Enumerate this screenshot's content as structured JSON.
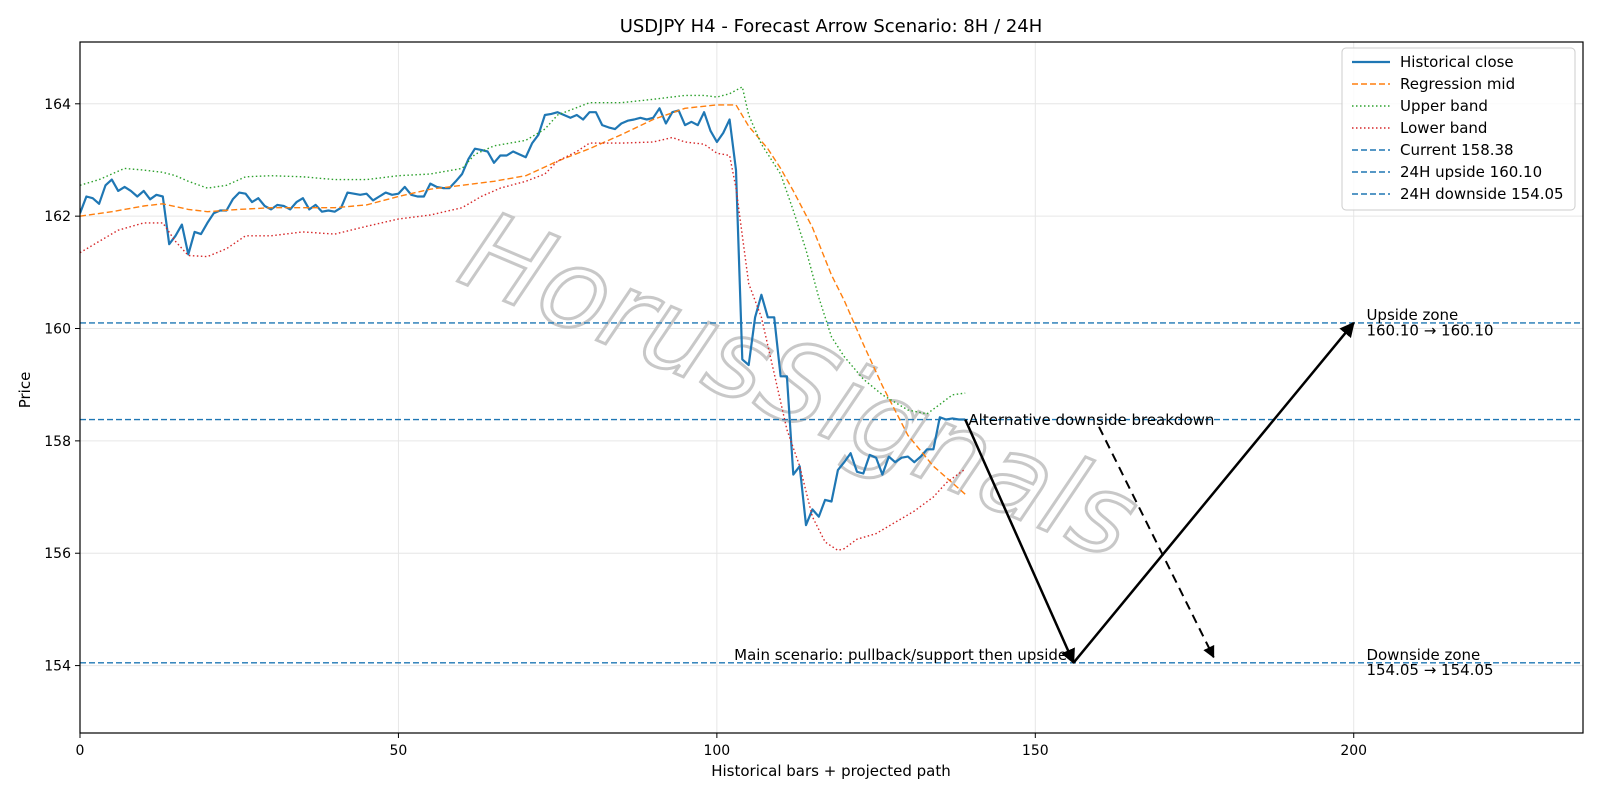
{
  "chart_data": {
    "type": "line",
    "title": "USDJPY H4 - Forecast Arrow Scenario: 8H / 24H",
    "xlabel": "Historical bars + projected path",
    "ylabel": "Price",
    "xlim": [
      0,
      236
    ],
    "ylim": [
      152.8,
      165.1
    ],
    "x_ticks": [
      0,
      50,
      100,
      150,
      200
    ],
    "y_ticks": [
      154,
      156,
      158,
      160,
      162,
      164
    ],
    "grid": true,
    "legend_position": "top-right",
    "watermark": "HorusSignals",
    "series": [
      {
        "name": "Historical close",
        "color": "#1f77b4",
        "style": "solid",
        "x": [
          0,
          1,
          2,
          3,
          4,
          5,
          6,
          7,
          8,
          9,
          10,
          11,
          12,
          13,
          14,
          15,
          16,
          17,
          18,
          19,
          20,
          21,
          22,
          23,
          24,
          25,
          26,
          27,
          28,
          29,
          30,
          31,
          32,
          33,
          34,
          35,
          36,
          37,
          38,
          39,
          40,
          41,
          42,
          43,
          44,
          45,
          46,
          47,
          48,
          49,
          50,
          51,
          52,
          53,
          54,
          55,
          56,
          57,
          58,
          59,
          60,
          61,
          62,
          63,
          64,
          65,
          66,
          67,
          68,
          69,
          70,
          71,
          72,
          73,
          74,
          75,
          76,
          77,
          78,
          79,
          80,
          81,
          82,
          83,
          84,
          85,
          86,
          87,
          88,
          89,
          90,
          91,
          92,
          93,
          94,
          95,
          96,
          97,
          98,
          99,
          100,
          101,
          102,
          103,
          104,
          105,
          106,
          107,
          108,
          109,
          110,
          111,
          112,
          113,
          114,
          115,
          116,
          117,
          118,
          119,
          120,
          121,
          122,
          123,
          124,
          125,
          126,
          127,
          128,
          129,
          130,
          131,
          132,
          133,
          134,
          135,
          136,
          137,
          138,
          139
        ],
        "values": [
          162.05,
          162.35,
          162.32,
          162.22,
          162.55,
          162.65,
          162.45,
          162.52,
          162.45,
          162.35,
          162.45,
          162.3,
          162.38,
          162.35,
          161.5,
          161.65,
          161.85,
          161.32,
          161.72,
          161.68,
          161.88,
          162.05,
          162.1,
          162.1,
          162.3,
          162.42,
          162.4,
          162.25,
          162.32,
          162.18,
          162.12,
          162.2,
          162.18,
          162.12,
          162.25,
          162.32,
          162.12,
          162.2,
          162.08,
          162.1,
          162.08,
          162.15,
          162.42,
          162.4,
          162.38,
          162.4,
          162.28,
          162.35,
          162.42,
          162.38,
          162.4,
          162.52,
          162.38,
          162.35,
          162.35,
          162.58,
          162.52,
          162.5,
          162.5,
          162.62,
          162.75,
          163.02,
          163.2,
          163.18,
          163.15,
          162.95,
          163.08,
          163.08,
          163.15,
          163.1,
          163.05,
          163.3,
          163.45,
          163.8,
          163.82,
          163.85,
          163.8,
          163.75,
          163.8,
          163.72,
          163.85,
          163.85,
          163.62,
          163.58,
          163.55,
          163.65,
          163.7,
          163.72,
          163.75,
          163.72,
          163.75,
          163.92,
          163.65,
          163.85,
          163.88,
          163.62,
          163.68,
          163.62,
          163.85,
          163.52,
          163.32,
          163.48,
          163.72,
          162.82,
          159.45,
          159.35,
          160.2,
          160.6,
          160.2,
          160.2,
          159.15,
          159.15,
          157.4,
          157.55,
          156.5,
          156.78,
          156.65,
          156.95,
          156.92,
          157.48,
          157.62,
          157.78,
          157.45,
          157.42,
          157.75,
          157.7,
          157.4,
          157.72,
          157.62,
          157.7,
          157.72,
          157.62,
          157.72,
          157.85,
          157.85,
          158.42,
          158.38,
          158.4,
          158.38,
          158.38
        ]
      },
      {
        "name": "Regression mid",
        "color": "#ff7f0e",
        "style": "dashed",
        "x": [
          0,
          5,
          10,
          13,
          17,
          20,
          25,
          30,
          35,
          40,
          45,
          50,
          55,
          60,
          65,
          70,
          75,
          80,
          85,
          90,
          95,
          100,
          103,
          105,
          108,
          110,
          112,
          115,
          118,
          120,
          123,
          126,
          130,
          134,
          137,
          139
        ],
        "values": [
          162.0,
          162.08,
          162.18,
          162.22,
          162.12,
          162.08,
          162.12,
          162.15,
          162.15,
          162.15,
          162.2,
          162.35,
          162.48,
          162.55,
          162.62,
          162.72,
          162.98,
          163.2,
          163.45,
          163.72,
          163.92,
          163.98,
          163.98,
          163.6,
          163.2,
          162.85,
          162.45,
          161.8,
          160.95,
          160.5,
          159.72,
          158.98,
          158.1,
          157.55,
          157.25,
          157.05
        ]
      },
      {
        "name": "Upper band",
        "color": "#2ca02c",
        "style": "dotted",
        "x": [
          0,
          3,
          7,
          10,
          13,
          15,
          17,
          20,
          23,
          26,
          30,
          35,
          40,
          45,
          50,
          55,
          60,
          62,
          65,
          70,
          73,
          75,
          80,
          85,
          90,
          95,
          98,
          100,
          102,
          104,
          105,
          107,
          110,
          112,
          114,
          116,
          118,
          120,
          123,
          126,
          130,
          133,
          135,
          137,
          139
        ],
        "values": [
          162.55,
          162.65,
          162.85,
          162.82,
          162.78,
          162.72,
          162.62,
          162.5,
          162.55,
          162.7,
          162.72,
          162.7,
          162.65,
          162.65,
          162.72,
          162.75,
          162.85,
          163.1,
          163.25,
          163.35,
          163.55,
          163.8,
          164.02,
          164.02,
          164.08,
          164.15,
          164.15,
          164.12,
          164.18,
          164.3,
          163.8,
          163.28,
          162.75,
          162.1,
          161.4,
          160.55,
          159.85,
          159.5,
          159.1,
          158.82,
          158.55,
          158.48,
          158.65,
          158.82,
          158.85
        ]
      },
      {
        "name": "Lower band",
        "color": "#d62728",
        "style": "dotted",
        "x": [
          0,
          3,
          6,
          10,
          13,
          15,
          17,
          20,
          23,
          26,
          30,
          35,
          40,
          45,
          50,
          55,
          60,
          63,
          66,
          70,
          73,
          75,
          78,
          80,
          85,
          90,
          93,
          95,
          98,
          100,
          102,
          103,
          105,
          107,
          109,
          111,
          113,
          115,
          117,
          119,
          120,
          122,
          125,
          128,
          131,
          134,
          136,
          139
        ],
        "values": [
          161.35,
          161.55,
          161.75,
          161.88,
          161.88,
          161.55,
          161.3,
          161.28,
          161.42,
          161.65,
          161.65,
          161.72,
          161.68,
          161.82,
          161.95,
          162.02,
          162.15,
          162.35,
          162.5,
          162.62,
          162.75,
          162.98,
          163.15,
          163.3,
          163.3,
          163.32,
          163.4,
          163.32,
          163.28,
          163.12,
          163.08,
          162.5,
          160.8,
          160.2,
          159.2,
          158.2,
          157.55,
          156.65,
          156.2,
          156.05,
          156.08,
          156.25,
          156.35,
          156.55,
          156.75,
          157.0,
          157.25,
          157.5
        ]
      }
    ],
    "reference_lines": [
      {
        "name": "Current 158.38",
        "y": 158.38,
        "color": "#1f77b4",
        "style": "dashed"
      },
      {
        "name": "24H upside 160.10",
        "y": 160.1,
        "color": "#1f77b4",
        "style": "dashed"
      },
      {
        "name": "24H downside 154.05",
        "y": 154.05,
        "color": "#1f77b4",
        "style": "dashed"
      }
    ],
    "arrows": [
      {
        "from": [
          139,
          158.38
        ],
        "to": [
          156,
          154.05
        ],
        "style": "solid"
      },
      {
        "from": [
          156,
          154.05
        ],
        "to": [
          200,
          160.1
        ],
        "style": "solid"
      },
      {
        "from": [
          160,
          158.25
        ],
        "to": [
          178,
          154.15
        ],
        "style": "dashed"
      }
    ],
    "annotations": [
      {
        "text": "Alternative downside breakdown",
        "x": 139.5,
        "y": 158.28,
        "anchor": "start"
      },
      {
        "text": "Main scenario: pullback/support then upside",
        "x": 155,
        "y": 154.1,
        "anchor": "end"
      },
      {
        "text": "Upside zone",
        "x": 202,
        "y": 160.15,
        "anchor": "start"
      },
      {
        "text": "160.10 → 160.10",
        "x": 202,
        "y": 159.88,
        "anchor": "start"
      },
      {
        "text": "Downside zone",
        "x": 202,
        "y": 154.1,
        "anchor": "start"
      },
      {
        "text": "154.05 → 154.05",
        "x": 202,
        "y": 153.83,
        "anchor": "start"
      }
    ]
  }
}
